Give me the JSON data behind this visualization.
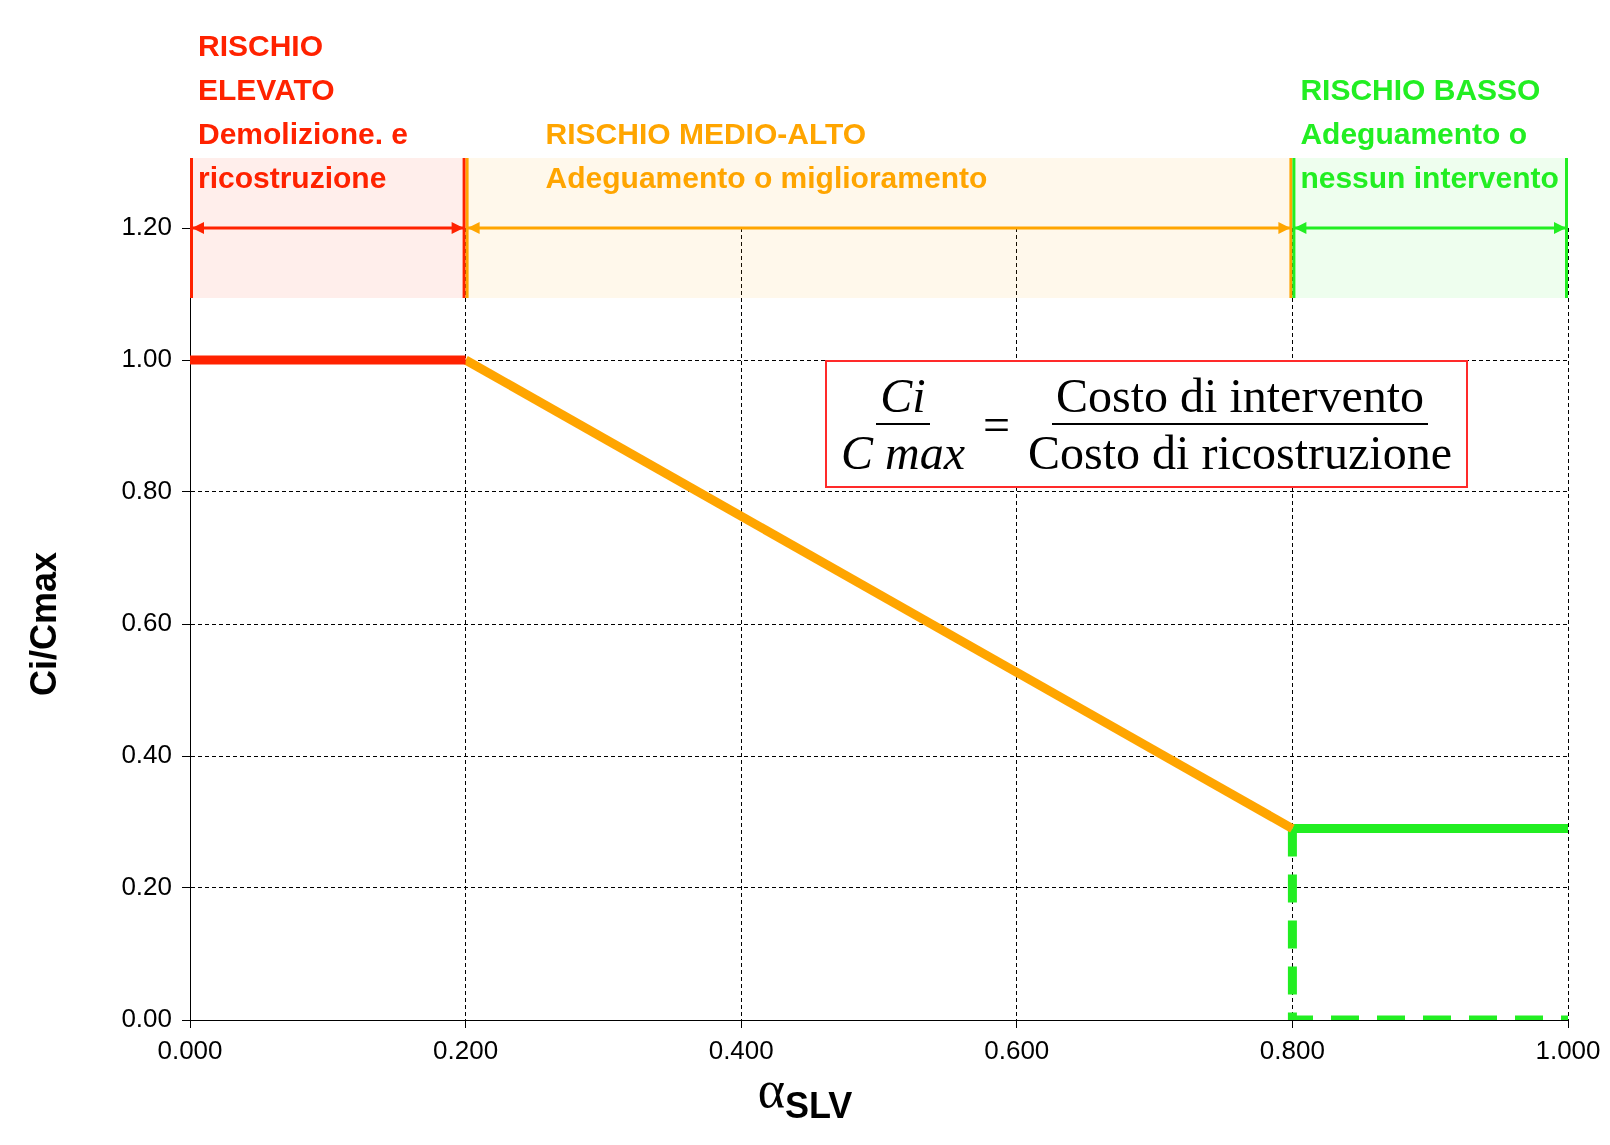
{
  "chart_data": {
    "type": "line",
    "xlabel": "α$_{SLV}$",
    "ylabel": "Ci/Cmax",
    "series": [
      {
        "color": "#ff2200",
        "x": [
          0,
          0.2
        ],
        "values": [
          1,
          1
        ],
        "line_style": "solid"
      },
      {
        "color": "#ffa500",
        "x": [
          0.2,
          0.8
        ],
        "values": [
          1,
          0.29
        ],
        "line_style": "solid"
      },
      {
        "color": "#22ee22",
        "x": [
          0.8,
          1
        ],
        "values": [
          0.29,
          0.29
        ],
        "line_style": "solid"
      },
      {
        "color": "#22ee22",
        "x": [
          0.8,
          0.8,
          1
        ],
        "values": [
          0.29,
          0,
          0
        ],
        "line_style": "dashed"
      }
    ],
    "xlim": [
      0,
      1
    ],
    "ylim": [
      0,
      1.2
    ],
    "xticks": [
      {
        "value": 0,
        "label": "0.000"
      },
      {
        "value": 0.2,
        "label": "0.200"
      },
      {
        "value": 0.4,
        "label": "0.400"
      },
      {
        "value": 0.6,
        "label": "0.600"
      },
      {
        "value": 0.8,
        "label": "0.800"
      },
      {
        "value": 1,
        "label": "1.000"
      }
    ],
    "yticks": [
      {
        "value": 0,
        "label": "0.00"
      },
      {
        "value": 0.2,
        "label": "0.20"
      },
      {
        "value": 0.4,
        "label": "0.40"
      },
      {
        "value": 0.6,
        "label": "0.60"
      },
      {
        "value": 0.8,
        "label": "0.80"
      },
      {
        "value": 1,
        "label": "1.00"
      },
      {
        "value": 1.2,
        "label": "1.20"
      }
    ],
    "bands": [
      {
        "axis": "x",
        "from": 0,
        "to": 0.2,
        "label": "RISCHIO\nELEVATO\nDemolizione. e\nricostruzione",
        "color": "#ff2200"
      },
      {
        "axis": "x",
        "from": 0.2,
        "to": 0.8,
        "label": "RISCHIO MEDIO-ALTO\nAdeguamento o miglioramento",
        "color": "#ffa500"
      },
      {
        "axis": "x",
        "from": 0.8,
        "to": 1,
        "label": "RISCHIO BASSO\nAdeguamento o\nnessun intervento",
        "color": "#22ee22"
      }
    ],
    "annotations": [
      "Ci",
      "C max",
      "=",
      "Costo di intervento",
      "Costo di ricostruzione"
    ],
    "grid": true,
    "legend": false,
    "marker": "none"
  }
}
